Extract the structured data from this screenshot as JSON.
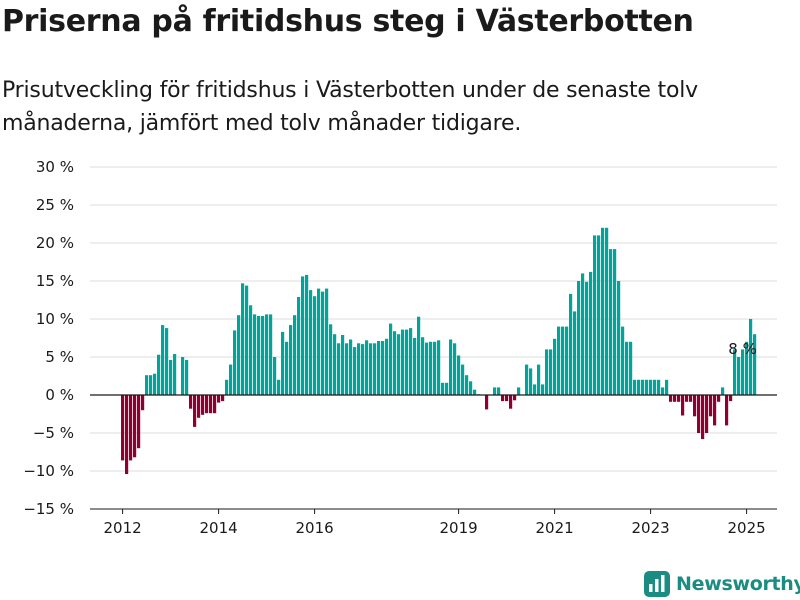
{
  "header": {
    "title": "Priserna på fritidshus steg i Västerbotten",
    "subtitle": "Prisutveckling för fritidshus i Västerbotten under de senaste tolv månaderna, jämfört med tolv månader tidigare."
  },
  "brand": {
    "name": "Newsworthy",
    "color": "#1a8c82",
    "icon": "bar-chart-logo-icon"
  },
  "chart_data": {
    "type": "bar",
    "title": "",
    "xlabel": "",
    "ylabel": "",
    "ylim": [
      -15,
      30
    ],
    "y_ticks": [
      -15,
      -10,
      -5,
      0,
      5,
      10,
      15,
      20,
      25,
      30
    ],
    "y_tick_labels": [
      "−15 %",
      "−10 %",
      "−5 %",
      "0 %",
      "5 %",
      "10 %",
      "15 %",
      "20 %",
      "25 %",
      "30 %"
    ],
    "x_start": "2012-01",
    "x_ticks": [
      "2012",
      "2014",
      "2016",
      "2019",
      "2021",
      "2023",
      "2025"
    ],
    "grid": true,
    "colors": {
      "positive": "#00a49a",
      "negative": "#8c0032",
      "zero_line": "#1a1a1a",
      "grid": "#dddddd"
    },
    "annotation": {
      "text": "8 %",
      "at_index": 154
    },
    "values": [
      -8.6,
      -10.4,
      -8.6,
      -8.2,
      -7.0,
      -2.0,
      2.6,
      2.6,
      2.8,
      5.3,
      9.2,
      8.8,
      4.6,
      5.4,
      0.0,
      5.0,
      4.6,
      -1.8,
      -4.2,
      -3.0,
      -2.6,
      -2.4,
      -2.4,
      -2.4,
      -1.0,
      -0.8,
      2.0,
      4.0,
      8.5,
      10.5,
      14.7,
      14.4,
      11.8,
      10.6,
      10.4,
      10.4,
      10.6,
      10.6,
      5.0,
      2.0,
      8.3,
      7.0,
      9.2,
      10.5,
      12.9,
      15.6,
      15.8,
      13.8,
      13.0,
      14.0,
      13.6,
      14.0,
      9.3,
      8.0,
      6.8,
      7.9,
      6.8,
      7.3,
      6.3,
      6.8,
      6.7,
      7.2,
      6.8,
      6.8,
      7.1,
      7.1,
      7.4,
      9.4,
      8.4,
      8.0,
      8.6,
      8.6,
      8.8,
      7.5,
      10.3,
      7.6,
      6.9,
      7.0,
      7.0,
      7.2,
      1.6,
      1.6,
      7.3,
      6.8,
      5.2,
      4.0,
      2.6,
      1.8,
      0.7,
      0.1,
      0.0,
      -1.9,
      0.0,
      1.0,
      1.0,
      -0.8,
      -0.8,
      -1.8,
      -0.7,
      1.0,
      0.0,
      4.0,
      3.5,
      1.4,
      4.0,
      1.4,
      6.0,
      6.0,
      7.4,
      9.0,
      9.0,
      9.0,
      13.3,
      11.0,
      15.0,
      16.0,
      14.9,
      16.2,
      21.0,
      21.0,
      22.0,
      22.0,
      19.2,
      19.2,
      15.0,
      9.0,
      7.0,
      7.0,
      2.0,
      2.0,
      2.0,
      2.0,
      2.0,
      2.0,
      2.0,
      1.0,
      2.0,
      -0.9,
      -0.9,
      -0.9,
      -2.7,
      -0.9,
      -0.9,
      -2.8,
      -5.0,
      -5.8,
      -5.0,
      -2.8,
      -4.0,
      -0.9,
      1.0,
      -4.0,
      -0.8,
      6.0,
      5.0,
      6.0,
      7.0,
      10.0,
      8.0
    ]
  }
}
